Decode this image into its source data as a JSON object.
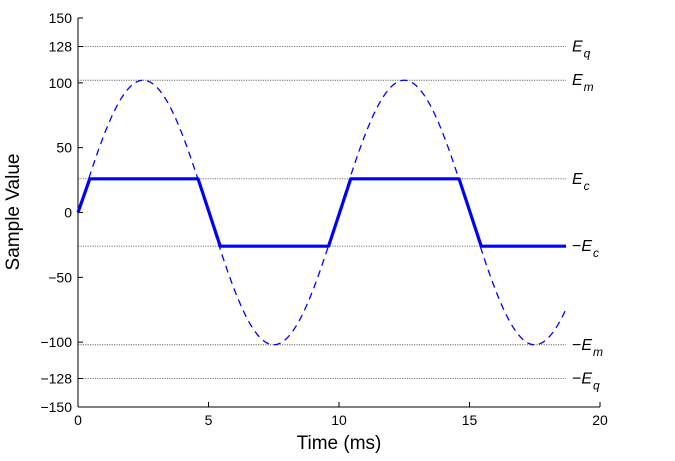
{
  "chart_data": {
    "type": "line",
    "title": "",
    "xlabel": "Time (ms)",
    "ylabel": "Sample Value",
    "xlim": [
      0,
      20
    ],
    "ylim": [
      -150,
      150
    ],
    "xticks": [
      {
        "value": 0,
        "label": "0"
      },
      {
        "value": 5,
        "label": "5"
      },
      {
        "value": 10,
        "label": "10"
      },
      {
        "value": 15,
        "label": "15"
      },
      {
        "value": 20,
        "label": "20"
      }
    ],
    "yticks": [
      {
        "value": 150,
        "label": "150"
      },
      {
        "value": 128,
        "label": "128"
      },
      {
        "value": 100,
        "label": "100"
      },
      {
        "value": 50,
        "label": "50"
      },
      {
        "value": 0,
        "label": "0"
      },
      {
        "value": -50,
        "label": "−50"
      },
      {
        "value": -100,
        "label": "−100"
      },
      {
        "value": -128,
        "label": "−128"
      },
      {
        "value": -150,
        "label": "−150"
      }
    ],
    "reference_lines": [
      {
        "y": 128,
        "prefix": "",
        "letter": "E",
        "sub": "q"
      },
      {
        "y": 102,
        "prefix": "",
        "letter": "E",
        "sub": "m"
      },
      {
        "y": 26,
        "prefix": "",
        "letter": "E",
        "sub": "c"
      },
      {
        "y": -26,
        "prefix": "−",
        "letter": "E",
        "sub": "c"
      },
      {
        "y": -102,
        "prefix": "−",
        "letter": "E",
        "sub": "m"
      },
      {
        "y": -128,
        "prefix": "−",
        "letter": "E",
        "sub": "q"
      }
    ],
    "series": [
      {
        "style": "dashed",
        "color": "#0000ff",
        "kind": "sine",
        "amplitude": 102,
        "period_ms": 10,
        "x_start": 0,
        "x_end": 18.7
      },
      {
        "style": "solid",
        "color": "#0000ff",
        "kind": "polyline",
        "x": [
          0,
          0.45,
          4.6,
          5.45,
          9.6,
          10.45,
          14.6,
          15.45,
          18.7
        ],
        "y": [
          0,
          26,
          26,
          -26,
          -26,
          26,
          26,
          -26,
          -26
        ]
      }
    ]
  }
}
